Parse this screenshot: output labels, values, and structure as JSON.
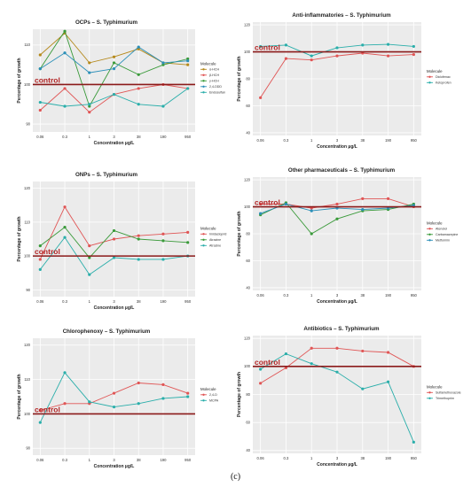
{
  "caption": "(c)",
  "chart_data": [
    {
      "type": "line",
      "title": "OCPs – S. Typhimurium",
      "xlabel": "Concentration µg/L",
      "ylabel": "Percentage of growth",
      "categories": [
        "0.06",
        "0.3",
        "1",
        "3",
        "38",
        "190",
        "950"
      ],
      "yticks": [
        90,
        100,
        110
      ],
      "ylim": [
        88,
        114
      ],
      "control_value": 100,
      "control_label": "control",
      "legend_title": "Molecule",
      "series": [
        {
          "name": "α-HCH",
          "color": "#b5891b",
          "values": [
            107.5,
            113,
            105.5,
            107,
            109,
            105.5,
            105
          ]
        },
        {
          "name": "β-HCH",
          "color": "#e05555",
          "values": [
            93.5,
            99,
            93,
            97.5,
            99,
            100,
            99
          ]
        },
        {
          "name": "γ-HCH",
          "color": "#3a9a3a",
          "values": [
            104,
            113.5,
            94.5,
            105.5,
            102.5,
            105,
            106.5
          ]
        },
        {
          "name": "2,4-DDD",
          "color": "#2b8fb8",
          "values": [
            104,
            108,
            103,
            104,
            109.5,
            105.5,
            106
          ]
        },
        {
          "name": "Endosulfan",
          "color": "#2aaeaa",
          "values": [
            95.5,
            94.5,
            95,
            97.5,
            95,
            94.5,
            99
          ]
        }
      ]
    },
    {
      "type": "line",
      "title": "Anti-inflammatories – S. Typhimurium",
      "xlabel": "Concentration µg/L",
      "ylabel": "Percentage of growth",
      "categories": [
        "0.06",
        "0.3",
        "1",
        "3",
        "38",
        "190",
        "950"
      ],
      "yticks": [
        40,
        60,
        80,
        100,
        120
      ],
      "ylim": [
        38,
        122
      ],
      "control_value": 100,
      "control_label": "control",
      "legend_title": "Molecule",
      "series": [
        {
          "name": "Diclofenac",
          "color": "#e05555",
          "values": [
            66,
            95,
            94,
            97,
            99,
            97,
            98
          ]
        },
        {
          "name": "Ketoprofen",
          "color": "#2aaeaa",
          "values": [
            104,
            105,
            97,
            103,
            105,
            105.5,
            104
          ]
        }
      ]
    },
    {
      "type": "line",
      "title": "ONPs – S. Typhimurium",
      "xlabel": "Concentration µg/L",
      "ylabel": "Percentage of growth",
      "categories": [
        "0.06",
        "0.3",
        "1",
        "3",
        "38",
        "190",
        "950"
      ],
      "yticks": [
        90,
        100,
        110,
        120
      ],
      "ylim": [
        88,
        122
      ],
      "control_value": 100,
      "control_label": "control",
      "legend_title": "Molecule",
      "series": [
        {
          "name": "Imidacloprid",
          "color": "#e05555",
          "values": [
            99,
            114.5,
            103,
            105,
            106,
            106.5,
            107
          ]
        },
        {
          "name": "Atrazine",
          "color": "#3a9a3a",
          "values": [
            103,
            108.5,
            99.5,
            107.5,
            105,
            104.5,
            104
          ]
        },
        {
          "name": "Atrazine",
          "color": "#2aaeaa",
          "values": [
            96,
            105.5,
            94.5,
            99.5,
            99,
            99,
            100
          ]
        }
      ]
    },
    {
      "type": "line",
      "title": "Other pharmaceuticals – S. Typhimurium",
      "xlabel": "Concentration µg/L",
      "ylabel": "Percentage of growth",
      "categories": [
        "0.06",
        "0.3",
        "1",
        "3",
        "38",
        "190",
        "950"
      ],
      "yticks": [
        40,
        60,
        80,
        100,
        120
      ],
      "ylim": [
        38,
        122
      ],
      "control_value": 100,
      "control_label": "control",
      "legend_title": "Molecule",
      "series": [
        {
          "name": "Atenolol",
          "color": "#e05555",
          "values": [
            102,
            102,
            99,
            102,
            106,
            106,
            100
          ]
        },
        {
          "name": "Carbamazepine",
          "color": "#3a9a3a",
          "values": [
            94,
            103,
            80,
            91,
            97,
            98,
            102
          ]
        },
        {
          "name": "Metformin",
          "color": "#2b8fb8",
          "values": [
            95,
            102,
            97,
            99,
            98,
            99,
            101
          ]
        }
      ]
    },
    {
      "type": "line",
      "title": "Chlorophenoxy – S. Typhimurium",
      "xlabel": "Concentration µg/L",
      "ylabel": "Percentage of growth",
      "categories": [
        "0.06",
        "0.3",
        "1",
        "3",
        "38",
        "190",
        "950"
      ],
      "yticks": [
        90,
        100,
        110,
        120
      ],
      "ylim": [
        88,
        122
      ],
      "control_value": 100,
      "control_label": "control",
      "legend_title": "Molecule",
      "series": [
        {
          "name": "2,4-D",
          "color": "#e05555",
          "values": [
            101,
            103,
            103,
            106,
            109,
            108.5,
            106
          ]
        },
        {
          "name": "MCPA",
          "color": "#2aaeaa",
          "values": [
            97.5,
            112,
            103.5,
            102,
            103,
            104.5,
            105
          ]
        }
      ]
    },
    {
      "type": "line",
      "title": "Antibiotics – S. Typhimurium",
      "xlabel": "Concentration µg/L",
      "ylabel": "Percentage of growth",
      "categories": [
        "0.06",
        "0.3",
        "1",
        "3",
        "38",
        "190",
        "950"
      ],
      "yticks": [
        40,
        60,
        80,
        100,
        120
      ],
      "ylim": [
        38,
        122
      ],
      "control_value": 100,
      "control_label": "control",
      "legend_title": "Molecule",
      "series": [
        {
          "name": "Sulfamethoxazole",
          "color": "#e05555",
          "values": [
            88,
            99,
            113,
            113,
            111,
            110,
            100
          ]
        },
        {
          "name": "Trimethoprim",
          "color": "#2aaeaa",
          "values": [
            98,
            109,
            102,
            96,
            84,
            89,
            46
          ]
        }
      ]
    }
  ]
}
